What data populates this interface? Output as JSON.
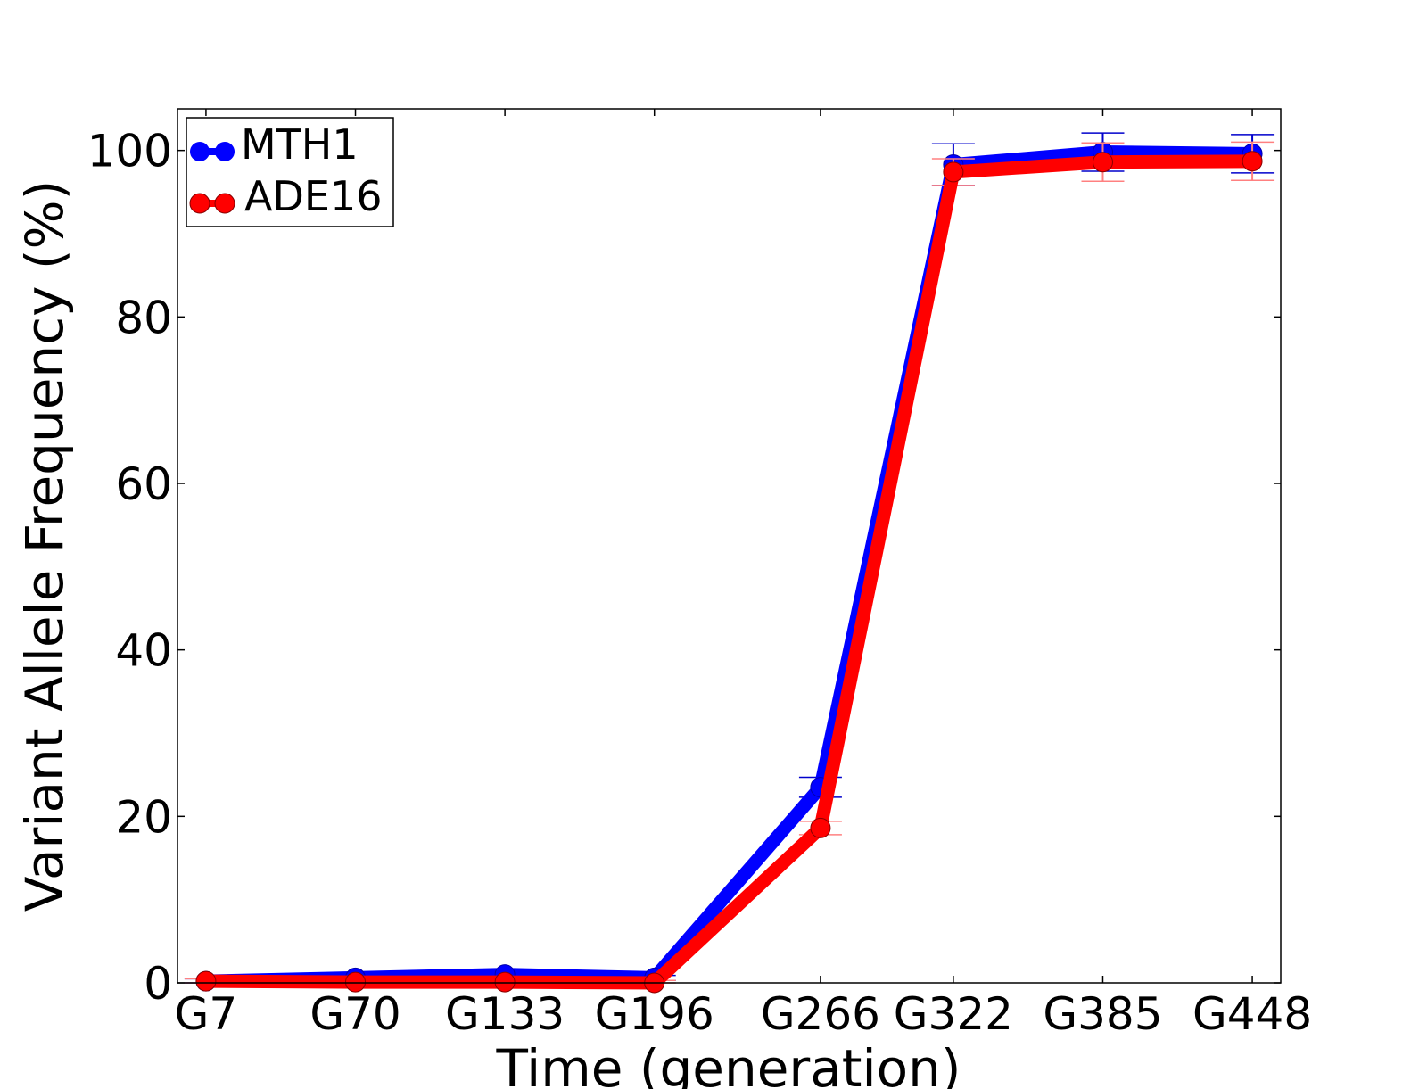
{
  "chart_data": {
    "type": "line",
    "title": "",
    "xlabel": "Time (generation)",
    "ylabel": "Variant Allele Frequency (%)",
    "categories": [
      "G7",
      "G70",
      "G133",
      "G196",
      "G266",
      "G322",
      "G385",
      "G448"
    ],
    "x": [
      7,
      70,
      133,
      196,
      266,
      322,
      385,
      448
    ],
    "xlim": [
      -5,
      460
    ],
    "ylim": [
      0,
      105
    ],
    "yticks": [
      "0",
      "20",
      "40",
      "60",
      "80",
      "100"
    ],
    "ytick_values": [
      0,
      20,
      40,
      60,
      80,
      100
    ],
    "grid": false,
    "legend": "top-left",
    "series": [
      {
        "name": "MTH1",
        "color": "#0000ff",
        "values": [
          0.2,
          0.6,
          1.0,
          0.6,
          23.5,
          98.3,
          99.8,
          99.6
        ],
        "errors": [
          0.3,
          0.3,
          0.3,
          0.3,
          1.2,
          2.5,
          2.3,
          2.3
        ]
      },
      {
        "name": "ADE16",
        "color": "#ff0000",
        "values": [
          0.2,
          0.1,
          0.1,
          0.0,
          18.6,
          97.4,
          98.6,
          98.7
        ],
        "errors": [
          0.3,
          0.3,
          0.3,
          0.3,
          0.8,
          1.6,
          2.3,
          2.3
        ]
      }
    ]
  }
}
